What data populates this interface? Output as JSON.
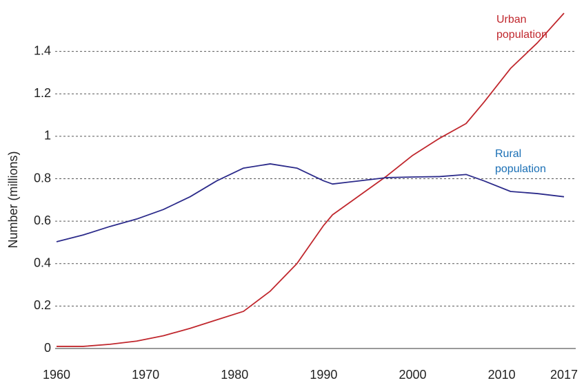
{
  "chart_data": {
    "type": "line",
    "y_label": "Number (millions)",
    "x": [
      1960,
      1963,
      1966,
      1969,
      1972,
      1975,
      1978,
      1981,
      1984,
      1987,
      1990,
      1991,
      1994,
      1997,
      2000,
      2003,
      2006,
      2008,
      2011,
      2014,
      2017
    ],
    "series": [
      {
        "name": "Urban population",
        "color": "#c0272d",
        "values": [
          0.01,
          0.01,
          0.02,
          0.035,
          0.06,
          0.095,
          0.135,
          0.175,
          0.27,
          0.4,
          0.58,
          0.63,
          0.72,
          0.81,
          0.91,
          0.99,
          1.06,
          1.16,
          1.32,
          1.44,
          1.58
        ]
      },
      {
        "name": "Rural population",
        "color": "#2b2a8a",
        "label_color": "#1a6fb5",
        "values": [
          0.503,
          0.535,
          0.575,
          0.61,
          0.655,
          0.715,
          0.79,
          0.85,
          0.87,
          0.85,
          0.79,
          0.775,
          0.79,
          0.805,
          0.808,
          0.81,
          0.82,
          0.79,
          0.74,
          0.73,
          0.715
        ]
      }
    ],
    "xlim": [
      1960,
      2017
    ],
    "xticks": [
      1960,
      1970,
      1980,
      1990,
      2000,
      2010,
      2017
    ],
    "ylim": [
      0,
      1.6
    ],
    "yticks": [
      0,
      0.2,
      0.4,
      0.6,
      0.8,
      1,
      1.2,
      1.4
    ],
    "grid": true
  }
}
